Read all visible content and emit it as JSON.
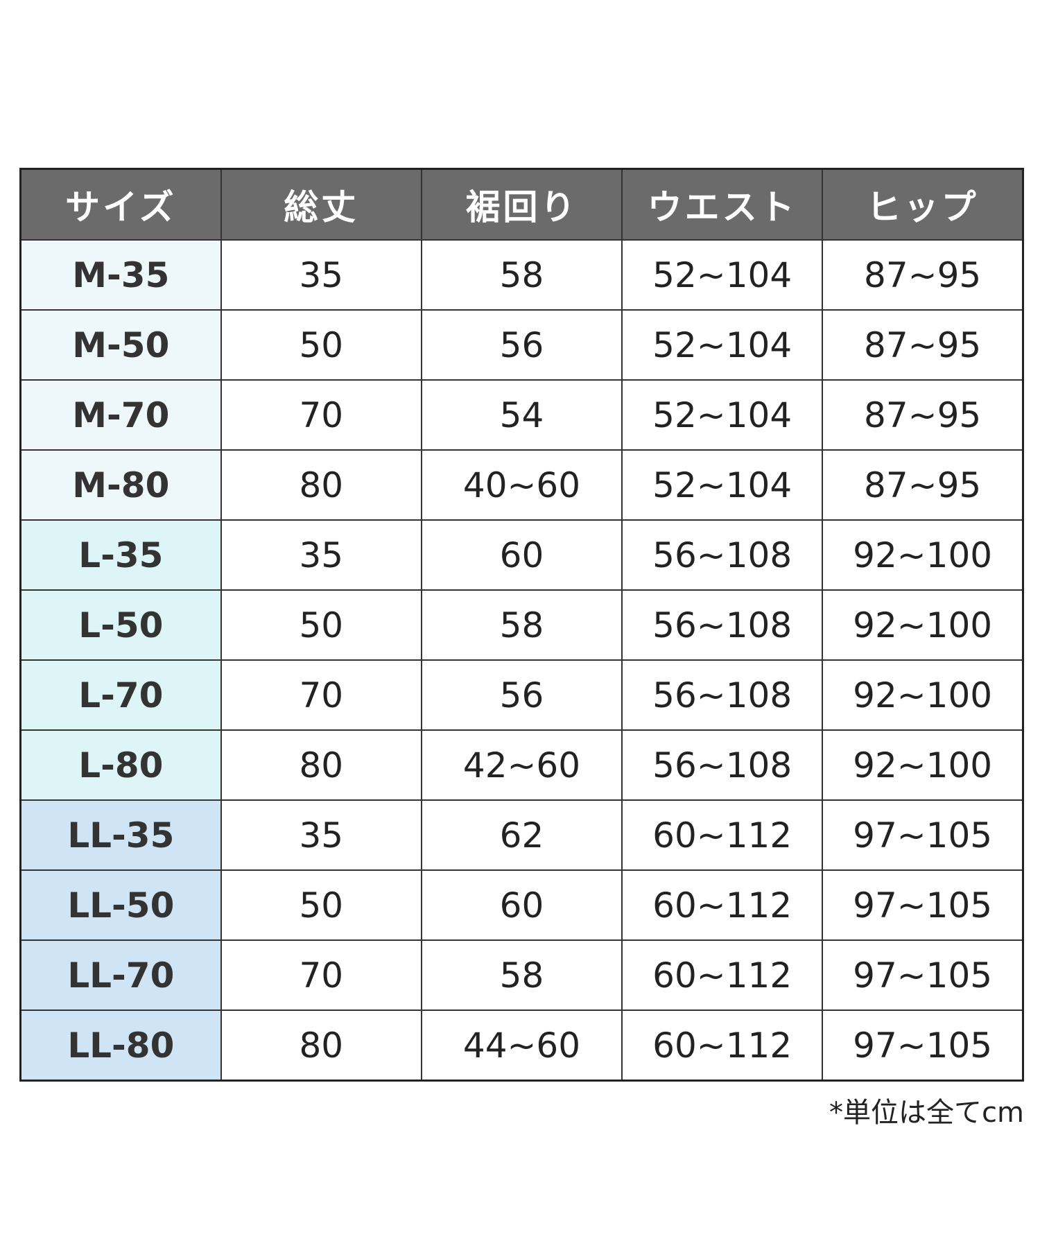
{
  "table": {
    "header": [
      "サイズ",
      "総丈",
      "裾回り",
      "ウエスト",
      "ヒップ"
    ],
    "rows": [
      [
        "M-35",
        "35",
        "58",
        "52~104",
        "87~95"
      ],
      [
        "M-50",
        "50",
        "56",
        "52~104",
        "87~95"
      ],
      [
        "M-70",
        "70",
        "54",
        "52~104",
        "87~95"
      ],
      [
        "M-80",
        "80",
        "40~60",
        "52~104",
        "87~95"
      ],
      [
        "L-35",
        "35",
        "60",
        "56~108",
        "92~100"
      ],
      [
        "L-50",
        "50",
        "58",
        "56~108",
        "92~100"
      ],
      [
        "L-70",
        "70",
        "56",
        "56~108",
        "92~100"
      ],
      [
        "L-80",
        "80",
        "42~60",
        "56~108",
        "92~100"
      ],
      [
        "LL-35",
        "35",
        "62",
        "60~112",
        "97~105"
      ],
      [
        "LL-50",
        "50",
        "60",
        "60~112",
        "97~105"
      ],
      [
        "LL-70",
        "70",
        "58",
        "60~112",
        "97~105"
      ],
      [
        "LL-80",
        "80",
        "44~60",
        "60~112",
        "97~105"
      ]
    ]
  },
  "footnote": "*単位は全てcm"
}
